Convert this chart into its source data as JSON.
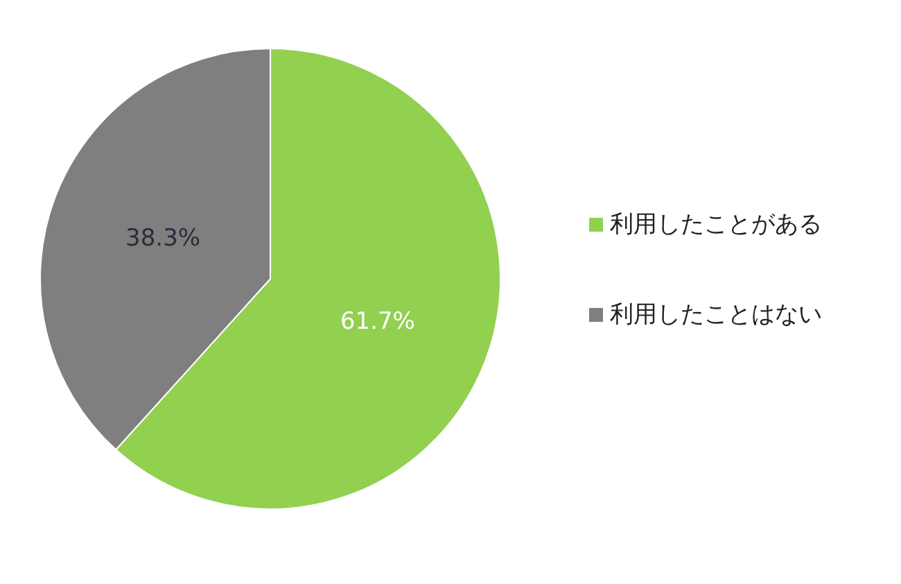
{
  "chart_data": {
    "type": "pie",
    "categories": [
      "利用したことがある",
      "利用したことはない"
    ],
    "values": [
      61.7,
      38.3
    ],
    "colors": [
      "#92d050",
      "#7f7f7f"
    ],
    "value_labels": [
      "61.7%",
      "38.3%"
    ],
    "legend": "right"
  }
}
